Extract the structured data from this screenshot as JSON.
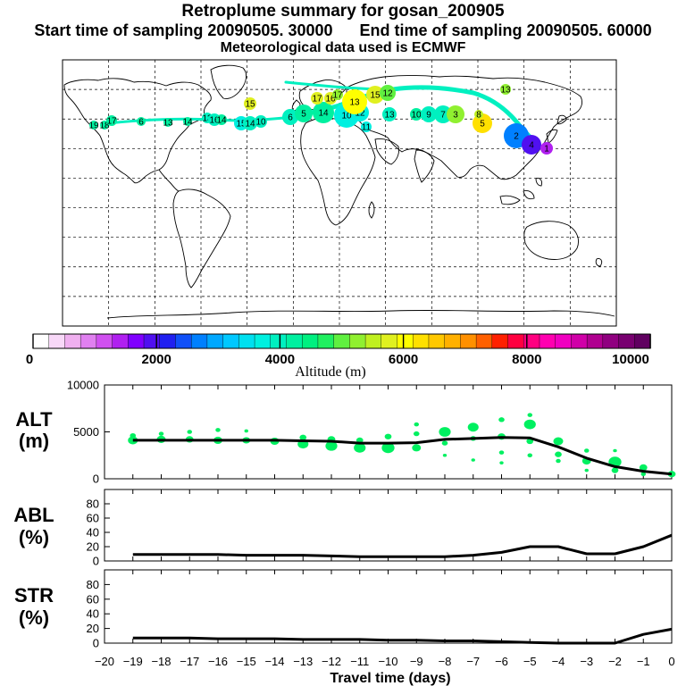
{
  "header": {
    "title": "Retroplume summary for gosan_200905",
    "start_label": "Start time of sampling 20090505. 30000",
    "end_label": "End time of sampling 20090505. 60000",
    "met_label": "Meteorological data used is ECMWF"
  },
  "colorbar": {
    "ticks": [
      "0",
      "2000",
      "4000",
      "6000",
      "8000",
      "10000"
    ],
    "title": "Altitude (m)",
    "colors": [
      "#ffffff",
      "#f8d8f8",
      "#f0b0f0",
      "#e080f0",
      "#d050f0",
      "#b020f0",
      "#8000ff",
      "#5010f0",
      "#2020f0",
      "#1050f8",
      "#0080ff",
      "#00a8ff",
      "#00c8ff",
      "#00e0f0",
      "#00f0e0",
      "#00f0c0",
      "#00f0a0",
      "#00f080",
      "#20f060",
      "#60f040",
      "#90f030",
      "#c0f020",
      "#e0f020",
      "#ffff00",
      "#ffe000",
      "#ffc800",
      "#ffb000",
      "#ff9000",
      "#ff6000",
      "#ff2000",
      "#ff0040",
      "#ff0080",
      "#ff00b0",
      "#f000c0",
      "#d000a8",
      "#b00090",
      "#900080",
      "#780070",
      "#600060"
    ]
  },
  "map_clusters": {
    "labels": [
      "19",
      "18",
      "17",
      "6",
      "13",
      "14",
      "13",
      "16",
      "14",
      "15",
      "14",
      "10",
      "6",
      "5",
      "14",
      "10",
      "12",
      "13",
      "10",
      "9",
      "7",
      "3",
      "5",
      "2",
      "4",
      "1",
      "15",
      "17",
      "16",
      "17",
      "15",
      "13",
      "11",
      "12",
      "8",
      "13"
    ]
  },
  "chart_data": [
    {
      "type": "line",
      "name": "ALT",
      "label_line1": "ALT",
      "label_line2": "(m)",
      "x": [
        -19,
        -18,
        -17,
        -16,
        -15,
        -14,
        -13,
        -12,
        -11,
        -10,
        -9,
        -8,
        -7,
        -6,
        -5,
        -4,
        -3,
        -2,
        -1,
        0
      ],
      "values": [
        4100,
        4100,
        4100,
        4100,
        4100,
        4100,
        4050,
        4000,
        3800,
        3800,
        3850,
        4200,
        4300,
        4400,
        4350,
        3400,
        2200,
        1300,
        800,
        500
      ],
      "ylim": [
        0,
        10000
      ],
      "yticks": [
        "0",
        "5000",
        "10000"
      ],
      "scatter_color": "#00f060",
      "scatter": [
        [
          -19,
          4100,
          10
        ],
        [
          -19,
          4600,
          6
        ],
        [
          -18,
          4200,
          9
        ],
        [
          -18,
          4800,
          5
        ],
        [
          -17,
          4200,
          8
        ],
        [
          -17,
          5000,
          5
        ],
        [
          -16,
          4100,
          9
        ],
        [
          -16,
          5200,
          5
        ],
        [
          -15,
          4100,
          8
        ],
        [
          -15,
          5100,
          4
        ],
        [
          -14,
          4000,
          9
        ],
        [
          -13,
          3700,
          11
        ],
        [
          -13,
          4400,
          7
        ],
        [
          -12,
          3500,
          12
        ],
        [
          -12,
          4200,
          8
        ],
        [
          -11,
          3300,
          12
        ],
        [
          -11,
          4100,
          7
        ],
        [
          -10,
          3300,
          13
        ],
        [
          -10,
          4500,
          7
        ],
        [
          -9,
          3300,
          9
        ],
        [
          -9,
          4800,
          6
        ],
        [
          -9,
          5800,
          5
        ],
        [
          -8,
          5000,
          12
        ],
        [
          -8,
          3800,
          6
        ],
        [
          -8,
          2500,
          4
        ],
        [
          -7,
          5500,
          11
        ],
        [
          -7,
          4300,
          6
        ],
        [
          -7,
          2000,
          4
        ],
        [
          -6,
          6300,
          6
        ],
        [
          -6,
          4500,
          8
        ],
        [
          -6,
          2800,
          5
        ],
        [
          -6,
          1700,
          4
        ],
        [
          -5,
          5800,
          12
        ],
        [
          -5,
          4000,
          7
        ],
        [
          -5,
          2500,
          5
        ],
        [
          -5,
          6800,
          5
        ],
        [
          -4,
          4000,
          10
        ],
        [
          -4,
          2600,
          7
        ],
        [
          -4,
          1900,
          5
        ],
        [
          -3,
          1900,
          9
        ],
        [
          -3,
          3000,
          5
        ],
        [
          -3,
          900,
          4
        ],
        [
          -2,
          1800,
          13
        ],
        [
          -2,
          900,
          7
        ],
        [
          -2,
          3000,
          4
        ],
        [
          -1,
          1200,
          8
        ],
        [
          -1,
          500,
          5
        ],
        [
          0,
          500,
          8
        ]
      ],
      "scatter_unit": "x, y, size"
    },
    {
      "type": "line",
      "name": "ABL",
      "label_line1": "ABL",
      "label_line2": "(%)",
      "x": [
        -19,
        -18,
        -17,
        -16,
        -15,
        -14,
        -13,
        -12,
        -11,
        -10,
        -9,
        -8,
        -7,
        -6,
        -5,
        -4,
        -3,
        -2,
        -1,
        0
      ],
      "values": [
        9,
        9,
        9,
        9,
        8,
        8,
        8,
        7,
        6,
        6,
        6,
        6,
        8,
        12,
        20,
        20,
        10,
        10,
        20,
        36
      ],
      "ylim": [
        0,
        100
      ],
      "yticks": [
        "0",
        "20",
        "40",
        "60",
        "80"
      ]
    },
    {
      "type": "line",
      "name": "STR",
      "label_line1": "STR",
      "label_line2": "(%)",
      "x": [
        -19,
        -18,
        -17,
        -16,
        -15,
        -14,
        -13,
        -12,
        -11,
        -10,
        -9,
        -8,
        -7,
        -6,
        -5,
        -4,
        -3,
        -2,
        -1,
        0
      ],
      "values": [
        7,
        7,
        7,
        6,
        6,
        6,
        5,
        5,
        5,
        4,
        4,
        3,
        3,
        2,
        1,
        0,
        0,
        0,
        12,
        19
      ],
      "ylim": [
        0,
        100
      ],
      "yticks": [
        "0",
        "20",
        "40",
        "60",
        "80"
      ]
    }
  ],
  "x_axis": {
    "ticks": [
      "−20",
      "−19",
      "−18",
      "−17",
      "−16",
      "−15",
      "−14",
      "−13",
      "−12",
      "−11",
      "−10",
      "−9",
      "−8",
      "−7",
      "−6",
      "−5",
      "−4",
      "−3",
      "−2",
      "−1",
      "0"
    ],
    "title": "Travel time (days)"
  }
}
